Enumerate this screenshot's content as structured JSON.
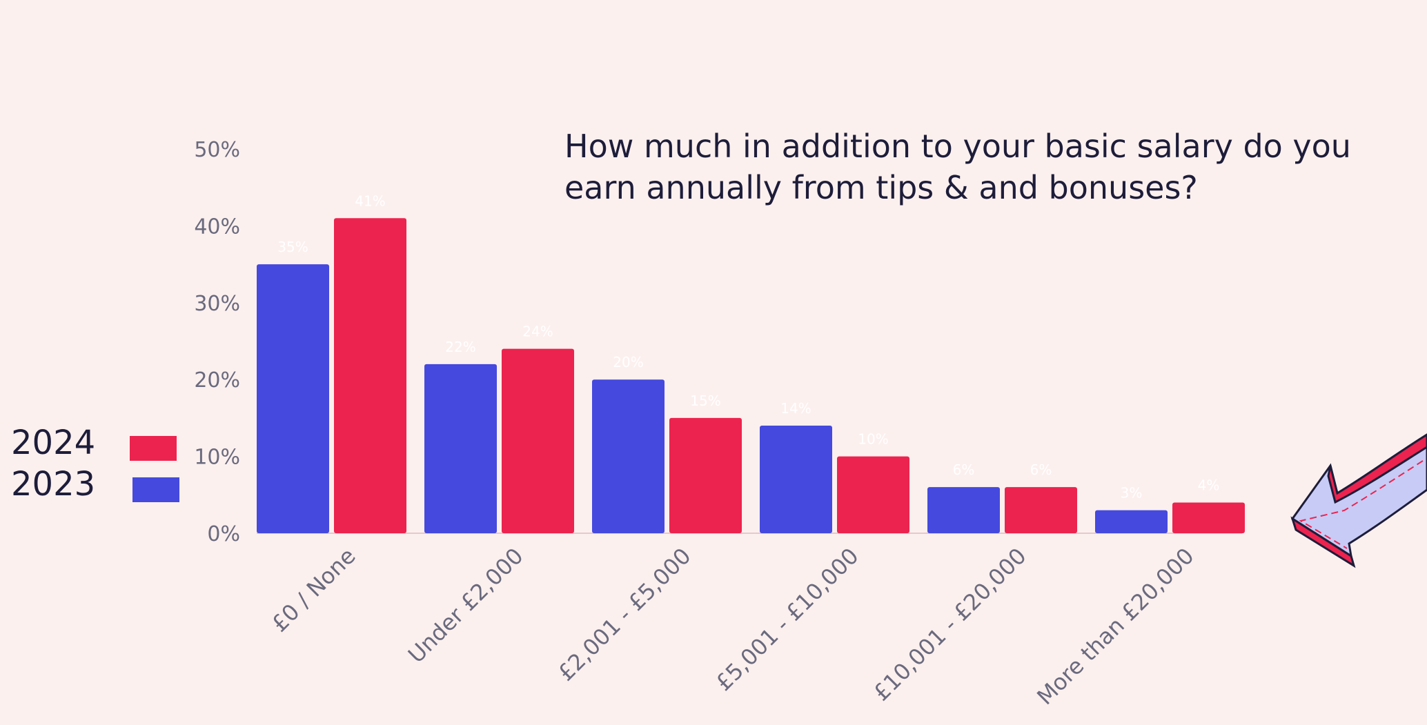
{
  "chart_data": {
    "type": "bar",
    "title": "How much in addition to your basic salary do you earn annually from tips & and bonuses?",
    "categories": [
      "£0 / None",
      "Under £2,000",
      "£2,001 - £5,000",
      "£5,001 - £10,000",
      "£10,001 - £20,000",
      "More than £20,000"
    ],
    "series": [
      {
        "name": "2023",
        "color": "#4549de",
        "values": [
          35,
          22,
          20,
          14,
          6,
          3
        ]
      },
      {
        "name": "2024",
        "color": "#ec234e",
        "values": [
          41,
          24,
          15,
          10,
          6,
          4
        ]
      }
    ],
    "ylim": [
      0,
      50
    ],
    "yticks": [
      "0%",
      "10%",
      "20%",
      "30%",
      "40%",
      "50%"
    ],
    "ytick_values": [
      0,
      10,
      20,
      30,
      40,
      50
    ],
    "data_labels": [
      "35%",
      "41%",
      "22%",
      "24%",
      "20%",
      "15%",
      "14%",
      "10%",
      "6%",
      "6%",
      "3%",
      "4%"
    ],
    "legend": [
      {
        "label": "2024",
        "color": "#ec234e"
      },
      {
        "label": "2023",
        "color": "#4549de"
      }
    ],
    "legend_position": "left"
  }
}
